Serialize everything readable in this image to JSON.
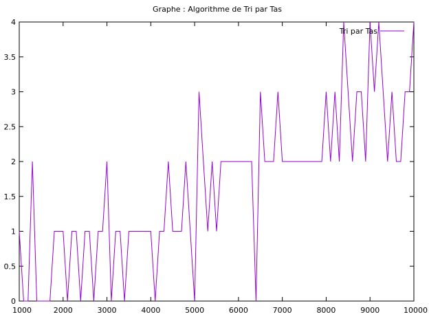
{
  "chart_data": {
    "type": "line",
    "title": "Graphe : Algorithme de Tri par Tas",
    "xlabel": "",
    "ylabel": "",
    "xlim": [
      1000,
      10000
    ],
    "ylim": [
      0,
      4
    ],
    "x_ticks": [
      "1000",
      "2000",
      "3000",
      "4000",
      "5000",
      "6000",
      "7000",
      "8000",
      "9000",
      "10000"
    ],
    "x_tick_values": [
      1000,
      2000,
      3000,
      4000,
      5000,
      6000,
      7000,
      8000,
      9000,
      10000
    ],
    "y_ticks": [
      "0",
      "0.5",
      "1",
      "1.5",
      "2",
      "2.5",
      "3",
      "3.5",
      "4"
    ],
    "y_tick_values": [
      0,
      0.5,
      1,
      1.5,
      2,
      2.5,
      3,
      3.5,
      4
    ],
    "grid": false,
    "legend_position": "top-right",
    "series": [
      {
        "name": "Tri par Tas",
        "color": "#9400d3",
        "x": [
          1000,
          1100,
          1200,
          1300,
          1400,
          1500,
          1600,
          1700,
          1800,
          1900,
          2000,
          2100,
          2200,
          2300,
          2400,
          2500,
          2600,
          2700,
          2800,
          2900,
          3000,
          3100,
          3200,
          3300,
          3400,
          3500,
          3600,
          3700,
          3800,
          3900,
          4000,
          4100,
          4200,
          4300,
          4400,
          4500,
          4600,
          4700,
          4800,
          4900,
          5000,
          5100,
          5200,
          5300,
          5400,
          5500,
          5600,
          5700,
          5800,
          5900,
          6000,
          6100,
          6200,
          6300,
          6400,
          6500,
          6600,
          6700,
          6800,
          6900,
          7000,
          7100,
          7200,
          7300,
          7400,
          7500,
          7600,
          7700,
          7800,
          7900,
          8000,
          8100,
          8200,
          8300,
          8400,
          8500,
          8600,
          8700,
          8800,
          8900,
          9000,
          9100,
          9200,
          9300,
          9400,
          9500,
          9600,
          9700,
          9800,
          9900,
          10000
        ],
        "values": [
          1,
          0,
          0,
          2,
          0,
          0,
          0,
          0,
          1,
          1,
          1,
          0,
          1,
          1,
          0,
          1,
          1,
          0,
          1,
          1,
          2,
          0,
          1,
          1,
          0,
          1,
          1,
          1,
          1,
          1,
          1,
          0,
          1,
          1,
          2,
          1,
          1,
          1,
          2,
          1,
          0,
          3,
          2,
          1,
          2,
          1,
          2,
          2,
          2,
          2,
          2,
          2,
          2,
          2,
          0,
          3,
          2,
          2,
          2,
          3,
          2,
          2,
          2,
          2,
          2,
          2,
          2,
          2,
          2,
          2,
          3,
          2,
          3,
          2,
          4,
          3,
          2,
          3,
          3,
          2,
          4,
          3,
          4,
          3,
          2,
          3,
          2,
          2,
          3,
          3,
          4
        ]
      }
    ]
  }
}
